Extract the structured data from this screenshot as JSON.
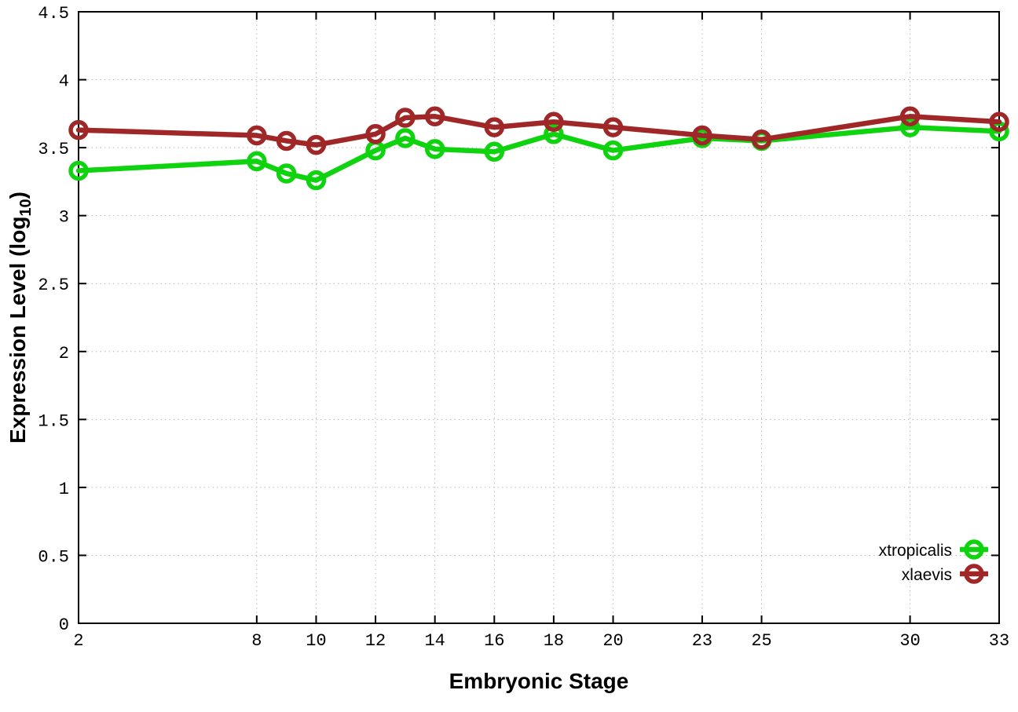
{
  "page": {
    "background": "#ffffff"
  },
  "chart_data": {
    "type": "line",
    "title": "",
    "xlabel": "Embryonic Stage",
    "ylabel": {
      "prefix": "Expression Level (log",
      "subscript": "10",
      "suffix": ")"
    },
    "xlim": [
      2,
      33
    ],
    "ylim": [
      0,
      4.5
    ],
    "x_ticks": [
      2,
      8,
      10,
      12,
      14,
      16,
      18,
      20,
      23,
      25,
      30,
      33
    ],
    "y_ticks": [
      0,
      0.5,
      1,
      1.5,
      2,
      2.5,
      3,
      3.5,
      4,
      4.5
    ],
    "grid": true,
    "legend_position": "bottom-right",
    "x": [
      2,
      8,
      9,
      10,
      12,
      13,
      14,
      16,
      18,
      20,
      23,
      25,
      30,
      33
    ],
    "series": [
      {
        "name": "xtropicalis",
        "color": "#0fd30f",
        "values": [
          3.33,
          3.4,
          3.31,
          3.26,
          3.48,
          3.57,
          3.49,
          3.47,
          3.6,
          3.48,
          3.57,
          3.55,
          3.65,
          3.62
        ]
      },
      {
        "name": "xlaevis",
        "color": "#a02727",
        "values": [
          3.63,
          3.59,
          3.55,
          3.52,
          3.6,
          3.72,
          3.73,
          3.65,
          3.69,
          3.65,
          3.59,
          3.56,
          3.73,
          3.69
        ]
      }
    ],
    "colors": {
      "grid": "#b8b8b8",
      "axis": "#000000"
    }
  }
}
